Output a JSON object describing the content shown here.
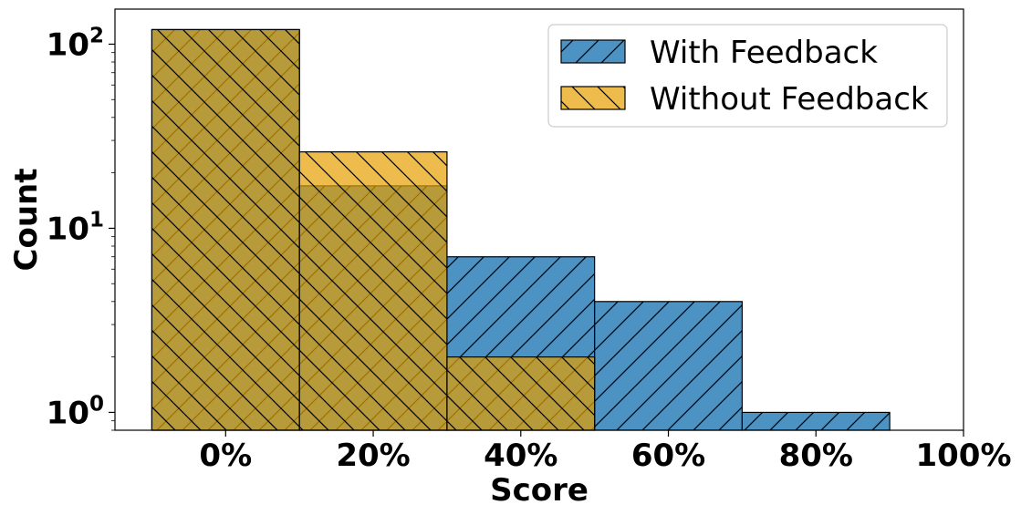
{
  "chart_data": {
    "type": "bar",
    "subtype": "overlaid histogram",
    "xlabel": "Score",
    "ylabel": "Count",
    "y_scale": "log",
    "ylim": [
      0.8,
      155
    ],
    "xlim": [
      -15,
      100
    ],
    "x_tick_values": [
      0,
      20,
      40,
      60,
      80,
      100
    ],
    "x_tick_labels": [
      "0%",
      "20%",
      "40%",
      "60%",
      "80%",
      "100%"
    ],
    "y_tick_values": [
      1,
      10,
      100
    ],
    "y_tick_labels": [
      {
        "base": "10",
        "exp": "0"
      },
      {
        "base": "10",
        "exp": "1"
      },
      {
        "base": "10",
        "exp": "2"
      }
    ],
    "bin_width": 20,
    "bins": [
      0,
      20,
      40,
      60,
      80
    ],
    "legend_position": "top-right",
    "series": [
      {
        "name": "With Feedback",
        "color": "#1f77b4",
        "hatch": "forward-diagonal",
        "values": [
          120,
          17,
          7,
          4,
          1
        ]
      },
      {
        "name": "Without Feedback",
        "color": "#e69f00",
        "hatch": "back-diagonal",
        "values": [
          120,
          26,
          2,
          0,
          0
        ]
      }
    ]
  }
}
